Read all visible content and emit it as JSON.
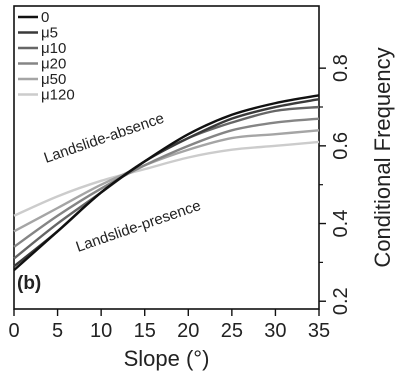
{
  "chart_data": {
    "type": "line",
    "panel_label": "(b)",
    "xlabel": "Slope (°)",
    "ylabel": "Conditional Frequency",
    "xlim": [
      0,
      35
    ],
    "ylim": [
      0.18,
      0.96
    ],
    "x_ticks": [
      0,
      5,
      10,
      15,
      20,
      25,
      30,
      35
    ],
    "y_ticks": [
      0.2,
      0.4,
      0.6,
      0.8
    ],
    "y_tick_labels": [
      "0.2",
      "0.4",
      "0.6",
      "0.8"
    ],
    "y_minor_ticks": [
      0.3,
      0.5,
      0.7
    ],
    "grid": false,
    "legend_position": "top-left",
    "annotations": [
      "Landslide-absence",
      "Landslide-presence"
    ],
    "x": [
      0,
      5,
      10,
      15,
      20,
      25,
      30,
      35
    ],
    "series": [
      {
        "name": "0",
        "color": "#111111",
        "values": [
          0.28,
          0.38,
          0.48,
          0.56,
          0.63,
          0.68,
          0.71,
          0.73
        ]
      },
      {
        "name": "μ5",
        "color": "#3a3a3a",
        "values": [
          0.29,
          0.38,
          0.48,
          0.56,
          0.62,
          0.67,
          0.7,
          0.72
        ]
      },
      {
        "name": "μ10",
        "color": "#666666",
        "values": [
          0.31,
          0.4,
          0.48,
          0.56,
          0.62,
          0.66,
          0.69,
          0.7
        ]
      },
      {
        "name": "μ20",
        "color": "#858585",
        "values": [
          0.34,
          0.42,
          0.49,
          0.55,
          0.6,
          0.64,
          0.66,
          0.67
        ]
      },
      {
        "name": "μ50",
        "color": "#a5a5a5",
        "values": [
          0.38,
          0.44,
          0.5,
          0.55,
          0.59,
          0.62,
          0.63,
          0.64
        ]
      },
      {
        "name": "μ120",
        "color": "#cccccc",
        "values": [
          0.42,
          0.47,
          0.51,
          0.54,
          0.57,
          0.59,
          0.6,
          0.61
        ]
      }
    ]
  }
}
